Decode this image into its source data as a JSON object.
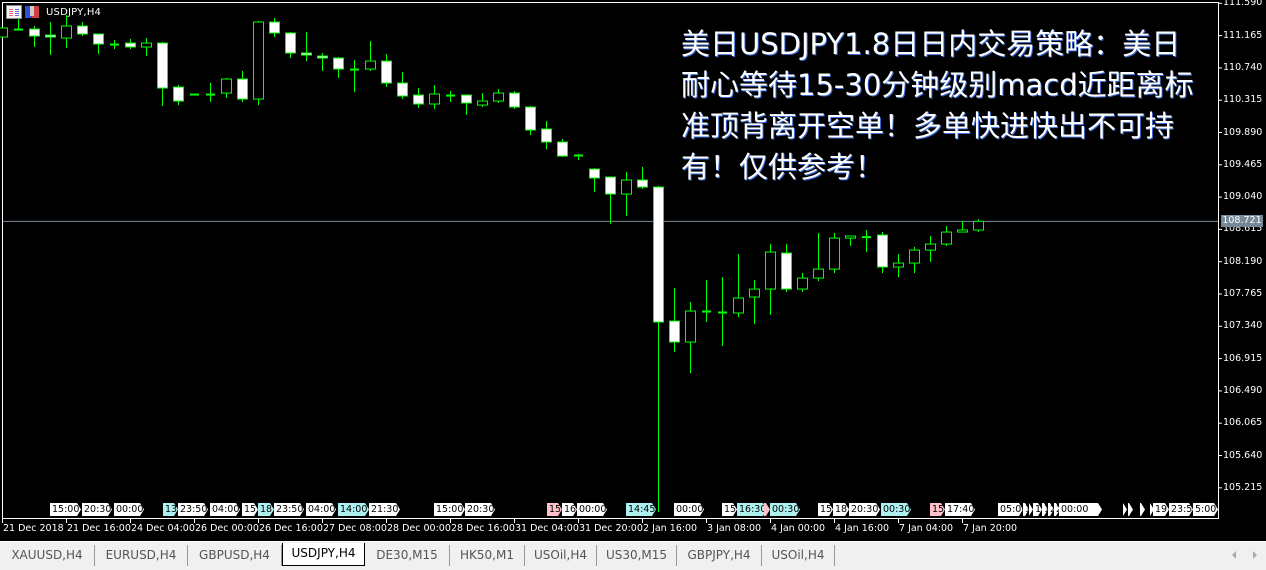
{
  "window": {
    "symbol_label": "USDJPY,H4"
  },
  "overlay_text": [
    "美日USDJPY1.8日日内交易策略：美日",
    "耐心等待15-30分钟级别macd近距离标",
    "准顶背离开空单！多单快进快出不可持",
    "有！仅供参考！"
  ],
  "colors": {
    "background": "#000000",
    "bull_body": "#000000",
    "bear_body": "#ffffff",
    "candle_outline": "#00ff00",
    "price_line": "#778899",
    "event_cyan": "#aef0f0",
    "event_pink": "#ffc0c8"
  },
  "chart_data": {
    "type": "candlestick",
    "symbol": "USDJPY,H4",
    "ylim": [
      104.9,
      111.6
    ],
    "y_ticks": [
      "111.590",
      "111.165",
      "110.740",
      "110.315",
      "109.890",
      "109.465",
      "109.040",
      "108.615",
      "108.190",
      "107.765",
      "107.340",
      "106.915",
      "106.490",
      "106.065",
      "105.640",
      "105.215"
    ],
    "current_price": "108.721",
    "x_tick_labels": [
      "21 Dec 2018",
      "21 Dec 16:00",
      "24 Dec 04:00",
      "26 Dec 00:00",
      "26 Dec 16:00",
      "27 Dec 08:00",
      "28 Dec 00:00",
      "28 Dec 16:00",
      "31 Dec 04:00",
      "31 Dec 20:00",
      "2 Jan 16:00",
      "3 Jan 08:00",
      "4 Jan 00:00",
      "4 Jan 16:00",
      "7 Jan 04:00",
      "7 Jan 20:00"
    ],
    "ohlc": [
      [
        111.146,
        111.265,
        111.146,
        111.265
      ],
      [
        111.251,
        111.383,
        111.251,
        111.251
      ],
      [
        111.251,
        111.291,
        111.015,
        111.159
      ],
      [
        111.172,
        111.344,
        110.909,
        111.146
      ],
      [
        111.133,
        111.436,
        111.001,
        111.291
      ],
      [
        111.291,
        111.344,
        111.159,
        111.186
      ],
      [
        111.186,
        111.186,
        110.922,
        111.054
      ],
      [
        111.054,
        111.107,
        110.988,
        111.047
      ],
      [
        111.067,
        111.12,
        110.988,
        111.015
      ],
      [
        111.015,
        111.133,
        110.896,
        111.067
      ],
      [
        111.067,
        111.08,
        110.238,
        110.475
      ],
      [
        110.488,
        110.515,
        110.251,
        110.304
      ],
      [
        110.396,
        110.396,
        110.396,
        110.396
      ],
      [
        110.396,
        110.541,
        110.291,
        110.39
      ],
      [
        110.409,
        110.607,
        110.344,
        110.594
      ],
      [
        110.594,
        110.699,
        110.291,
        110.33
      ],
      [
        110.33,
        111.357,
        110.251,
        111.344
      ],
      [
        111.344,
        111.396,
        111.146,
        111.199
      ],
      [
        111.199,
        111.212,
        110.87,
        110.936
      ],
      [
        110.936,
        111.212,
        110.83,
        110.909
      ],
      [
        110.896,
        110.936,
        110.699,
        110.87
      ],
      [
        110.87,
        110.883,
        110.607,
        110.725
      ],
      [
        110.725,
        110.844,
        110.422,
        110.72
      ],
      [
        110.725,
        111.094,
        110.699,
        110.83
      ],
      [
        110.83,
        110.922,
        110.488,
        110.541
      ],
      [
        110.541,
        110.686,
        110.33,
        110.37
      ],
      [
        110.383,
        110.475,
        110.212,
        110.265
      ],
      [
        110.265,
        110.515,
        110.199,
        110.396
      ],
      [
        110.383,
        110.436,
        110.291,
        110.38
      ],
      [
        110.383,
        110.383,
        110.12,
        110.278
      ],
      [
        110.251,
        110.409,
        110.225,
        110.304
      ],
      [
        110.304,
        110.462,
        110.278,
        110.409
      ],
      [
        110.409,
        110.436,
        110.199,
        110.225
      ],
      [
        110.225,
        110.238,
        109.857,
        109.922
      ],
      [
        109.936,
        110.041,
        109.672,
        109.765
      ],
      [
        109.765,
        109.804,
        109.567,
        109.58
      ],
      [
        109.594,
        109.607,
        109.528,
        109.59
      ],
      [
        109.409,
        109.422,
        109.107,
        109.291
      ],
      [
        109.304,
        109.304,
        108.686,
        109.08
      ],
      [
        109.08,
        109.37,
        108.791,
        109.265
      ],
      [
        109.265,
        109.436,
        109.146,
        109.172
      ],
      [
        109.172,
        109.186,
        104.896,
        107.396
      ],
      [
        107.409,
        107.843,
        107.001,
        107.133
      ],
      [
        107.133,
        107.659,
        106.725,
        107.541
      ],
      [
        107.541,
        107.949,
        107.396,
        107.535
      ],
      [
        107.528,
        107.988,
        107.08,
        107.521
      ],
      [
        107.515,
        108.291,
        107.462,
        107.712
      ],
      [
        107.725,
        107.949,
        107.37,
        107.83
      ],
      [
        107.83,
        108.422,
        107.488,
        108.317
      ],
      [
        108.304,
        108.422,
        107.791,
        107.83
      ],
      [
        107.83,
        108.041,
        107.791,
        107.975
      ],
      [
        107.975,
        108.567,
        107.936,
        108.093
      ],
      [
        108.093,
        108.567,
        108.041,
        108.501
      ],
      [
        108.501,
        108.528,
        108.396,
        108.528
      ],
      [
        108.515,
        108.607,
        108.317,
        108.52
      ],
      [
        108.541,
        108.58,
        108.041,
        108.12
      ],
      [
        108.12,
        108.291,
        107.988,
        108.172
      ],
      [
        108.172,
        108.383,
        108.041,
        108.343
      ],
      [
        108.343,
        108.528,
        108.186,
        108.422
      ],
      [
        108.422,
        108.659,
        108.396,
        108.58
      ],
      [
        108.58,
        108.725,
        108.58,
        108.607
      ],
      [
        108.607,
        108.751,
        108.58,
        108.721
      ]
    ]
  },
  "event_markers": [
    {
      "text": "15:00",
      "color": "white"
    },
    {
      "text": "20:30",
      "color": "white"
    },
    {
      "text": "00:00",
      "color": "white"
    },
    {
      "text": "13:",
      "color": "cyan"
    },
    {
      "text": "23:50",
      "color": "white"
    },
    {
      "text": "04:00",
      "color": "white"
    },
    {
      "text": "15:",
      "color": "white"
    },
    {
      "text": "18:",
      "color": "cyan"
    },
    {
      "text": "23:50",
      "color": "white"
    },
    {
      "text": "04:00",
      "color": "white"
    },
    {
      "text": "14:00",
      "color": "cyan"
    },
    {
      "text": "21:30",
      "color": "white"
    },
    {
      "text": "15:00",
      "color": "white"
    },
    {
      "text": "20:30",
      "color": "white"
    },
    {
      "text": "15:",
      "color": "pink"
    },
    {
      "text": "16:",
      "color": "white"
    },
    {
      "text": "00:00",
      "color": "white"
    },
    {
      "text": "14:45",
      "color": "cyan"
    },
    {
      "text": "00:00",
      "color": "white"
    },
    {
      "text": "15:",
      "color": "white"
    },
    {
      "text": "16:30",
      "color": "cyan"
    },
    {
      "text": "",
      "color": "pink"
    },
    {
      "text": "00:30",
      "color": "cyan"
    },
    {
      "text": "15:",
      "color": "white"
    },
    {
      "text": "18:",
      "color": "white"
    },
    {
      "text": "20:30",
      "color": "white"
    },
    {
      "text": "00:30",
      "color": "cyan"
    },
    {
      "text": "15:",
      "color": "pink"
    },
    {
      "text": "17:40",
      "color": "white"
    },
    {
      "text": "05:00",
      "color": "white"
    },
    {
      "text": "1:",
      "color": "white"
    },
    {
      "text": ":",
      "color": "white"
    },
    {
      "text": "15",
      "color": "white"
    },
    {
      "text": "1",
      "color": "white"
    },
    {
      "text": "2",
      "color": "white"
    },
    {
      "text": "2:",
      "color": "white"
    },
    {
      "text": "00:00",
      "color": "white"
    },
    {
      "text": "",
      "color": "white"
    },
    {
      "text": "",
      "color": "white"
    },
    {
      "text": "",
      "color": "white"
    },
    {
      "text": "",
      "color": "white"
    },
    {
      "text": "19:0",
      "color": "white"
    },
    {
      "text": "23:50",
      "color": "white"
    },
    {
      "text": "5:00",
      "color": "white"
    }
  ],
  "tabs": [
    {
      "label": "XAUUSD,H4",
      "active": false
    },
    {
      "label": "EURUSD,H4",
      "active": false
    },
    {
      "label": "GBPUSD,H4",
      "active": false
    },
    {
      "label": "USDJPY,H4",
      "active": true
    },
    {
      "label": "DE30,M15",
      "active": false
    },
    {
      "label": "HK50,M1",
      "active": false
    },
    {
      "label": "USOil,H4",
      "active": false
    },
    {
      "label": "US30,M15",
      "active": false
    },
    {
      "label": "GBPJPY,H4",
      "active": false
    },
    {
      "label": "USOil,H4",
      "active": false
    }
  ]
}
